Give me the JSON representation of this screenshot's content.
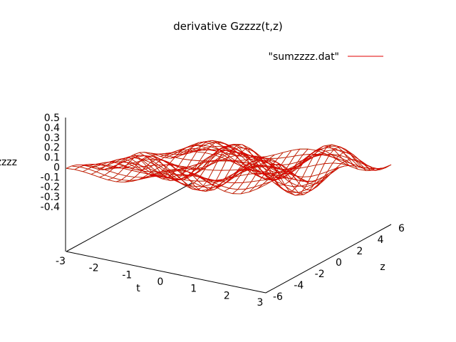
{
  "chart_data": {
    "type": "surface",
    "title": "derivative Gzzzz(t,z)",
    "xlabel": "t",
    "ylabel": "z",
    "zlabel": "Gzzzz",
    "legend": {
      "label": "\"sumzzzz.dat\"",
      "placement": "top-right",
      "color": "#e00000"
    },
    "x_range": [
      -3,
      3
    ],
    "y_range": [
      -6,
      6
    ],
    "z_range": [
      -0.4,
      0.5
    ],
    "x_ticks": [
      "-3",
      "-2",
      "-1",
      "0",
      "1",
      "2",
      "3"
    ],
    "x_tick_values": [
      -3,
      -2,
      -1,
      0,
      1,
      2,
      3
    ],
    "y_ticks": [
      "-6",
      "-4",
      "-2",
      "0",
      "2",
      "4",
      "6"
    ],
    "y_tick_values": [
      -6,
      -4,
      -2,
      0,
      2,
      4,
      6
    ],
    "z_ticks": [
      "0.5",
      "0.4",
      "0.3",
      "0.2",
      "0.1",
      "0",
      "-0.1",
      "-0.2",
      "-0.3",
      "-0.4"
    ],
    "z_tick_values": [
      0.5,
      0.4,
      0.3,
      0.2,
      0.1,
      0,
      -0.1,
      -0.2,
      -0.3,
      -0.4
    ],
    "grid_x_count": 25,
    "grid_y_count": 25,
    "grid": false,
    "colors": {
      "top_surface": "#e00000",
      "bottom_surface": "#00b000",
      "axes": "#000000"
    }
  }
}
